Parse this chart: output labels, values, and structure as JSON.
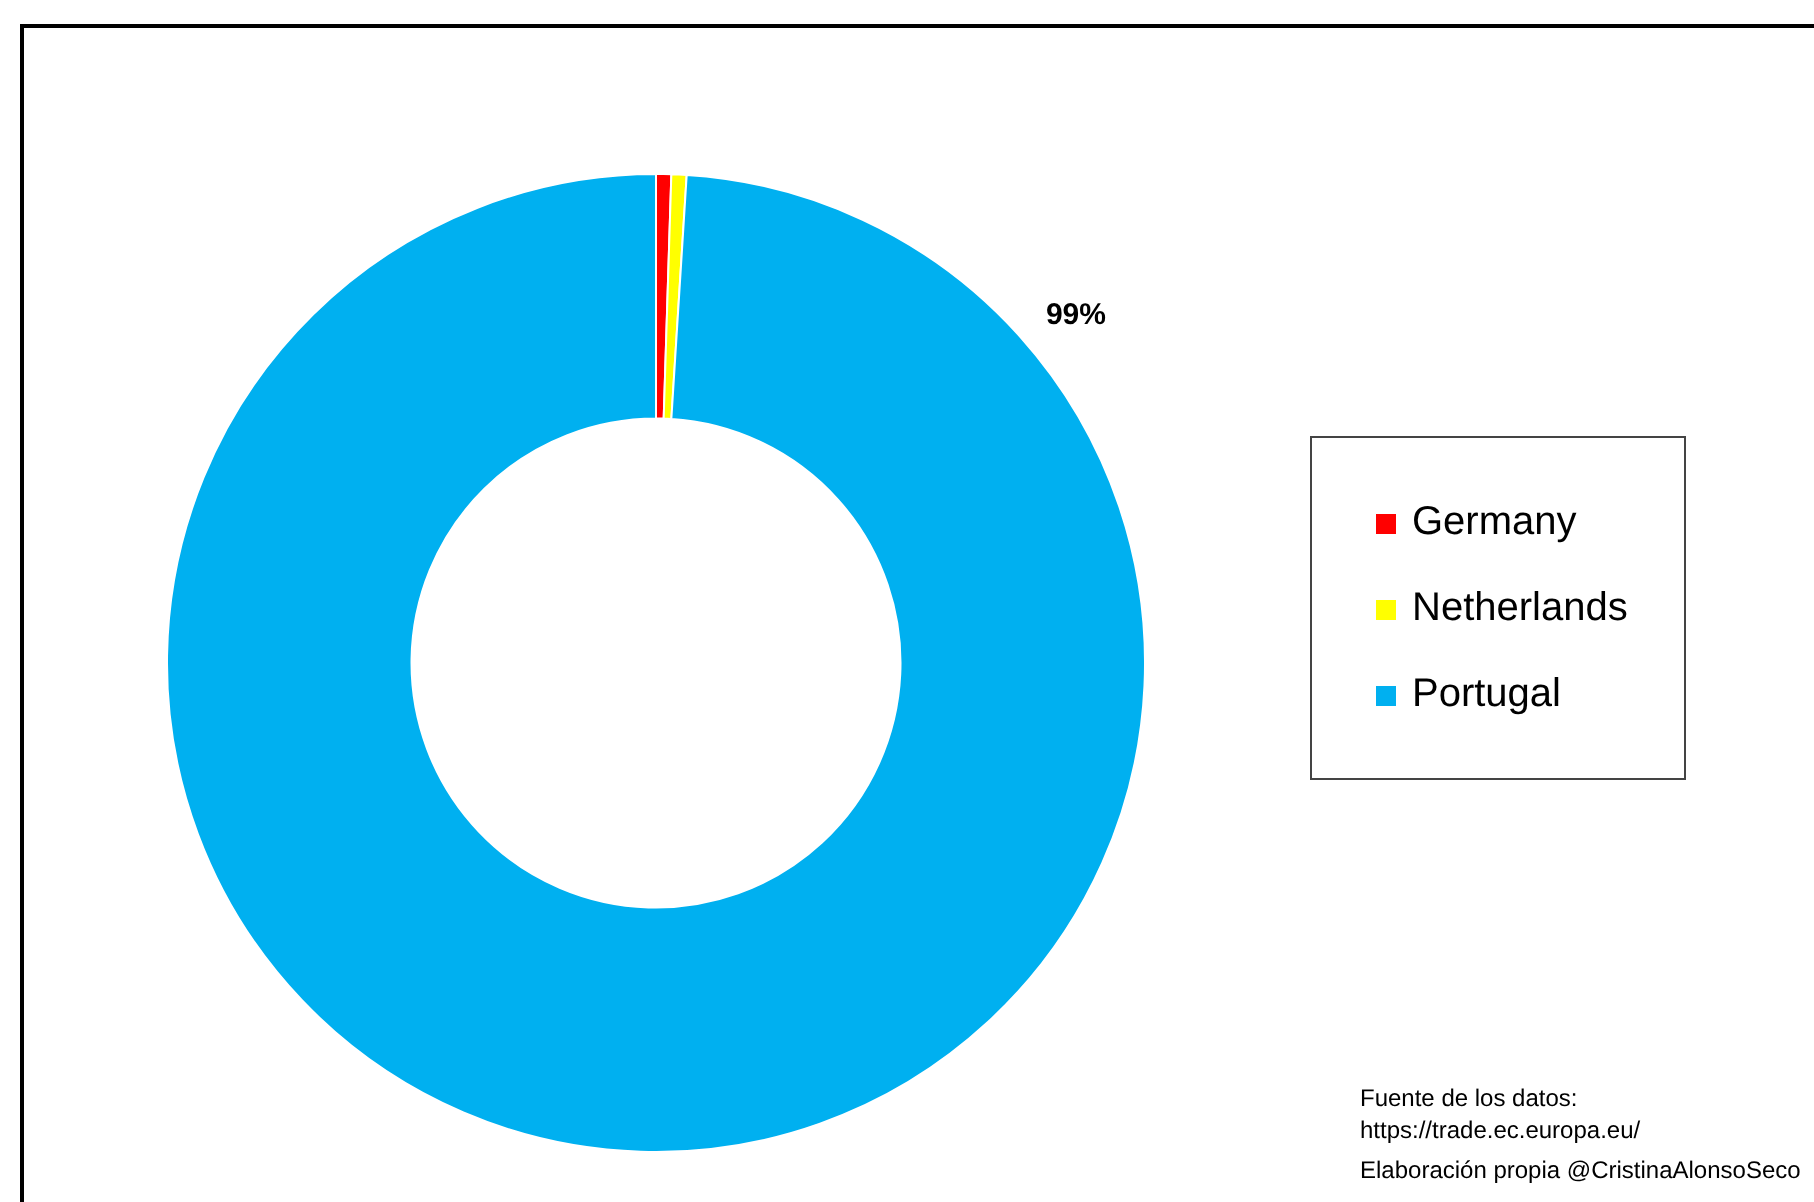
{
  "chart_data": {
    "type": "donut",
    "categories": [
      "Germany",
      "Netherlands",
      "Portugal"
    ],
    "values": [
      0.5,
      0.5,
      99
    ],
    "colors": [
      "#ff0000",
      "#ffff00",
      "#00b0f0"
    ],
    "value_labels": [
      null,
      null,
      "99%"
    ],
    "legend": "right",
    "annotations": [
      "Fuente de los datos:\nhttps://trade.ec.europa.eu/",
      "Elaboración propia @CristinaAlonsoSeco"
    ]
  }
}
